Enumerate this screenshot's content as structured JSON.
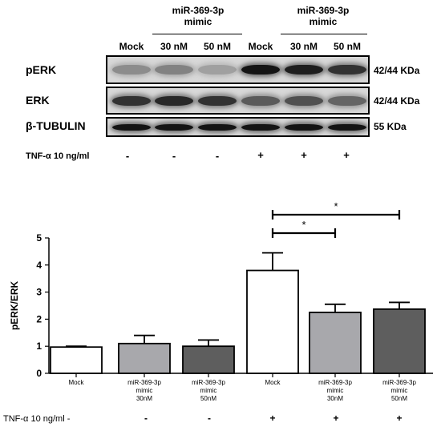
{
  "western_blot": {
    "group_headers": [
      {
        "line1": "miR-369-3p",
        "line2": "mimic"
      },
      {
        "line1": "miR-369-3p",
        "line2": "mimic"
      }
    ],
    "lane_labels": [
      "Mock",
      "30 nM",
      "50 nM",
      "Mock",
      "30 nM",
      "50 nM"
    ],
    "rows": [
      {
        "label": "pERK",
        "size": "42/44 KDa",
        "intensity": [
          0.35,
          0.4,
          0.25,
          0.95,
          0.9,
          0.8
        ]
      },
      {
        "label": "ERK",
        "size": "42/44 KDa",
        "intensity": [
          0.8,
          0.85,
          0.8,
          0.6,
          0.65,
          0.55
        ]
      },
      {
        "label": "β-TUBULIN",
        "size": "55 KDa",
        "intensity": [
          0.95,
          0.95,
          0.95,
          0.95,
          0.95,
          0.95
        ]
      }
    ],
    "tnf_label": "TNF-α 10 ng/ml",
    "tnf_signs": [
      "-",
      "-",
      "-",
      "+",
      "+",
      "+"
    ]
  },
  "chart_data": {
    "type": "bar",
    "categories": [
      "Mock",
      "miR-369-3p mimic 30nM",
      "miR-369-3p mimic 50nM",
      "Mock",
      "miR-369-3p mimic 30nM",
      "miR-369-3p mimic 50nM"
    ],
    "category_lines": [
      [
        "Mock"
      ],
      [
        "miR-369-3p",
        "mimic",
        "30nM"
      ],
      [
        "miR-369-3p",
        "mimic",
        "50nM"
      ],
      [
        "Mock"
      ],
      [
        "miR-369-3p",
        "mimic",
        "30nM"
      ],
      [
        "miR-369-3p",
        "mimic",
        "50nM"
      ]
    ],
    "values": [
      0.97,
      1.1,
      1.0,
      3.8,
      2.25,
      2.37
    ],
    "errors": [
      0.03,
      0.3,
      0.23,
      0.65,
      0.3,
      0.25
    ],
    "colors": [
      "#ffffff",
      "#a8a8ac",
      "#5e5e5e",
      "#ffffff",
      "#a8a8ac",
      "#5e5e5e"
    ],
    "ylabel": "pERK/ERK",
    "xlabel": "",
    "title": "",
    "ylim": [
      0,
      5
    ],
    "yticks": [
      0,
      1,
      2,
      3,
      4,
      5
    ],
    "significance": [
      {
        "from": 3,
        "to": 5,
        "label": "*"
      },
      {
        "from": 3,
        "to": 4,
        "label": "*"
      }
    ],
    "tnf_label": "TNF-α 10 ng/ml -",
    "tnf_signs": [
      "-",
      "-",
      "+",
      "+",
      "+"
    ]
  }
}
